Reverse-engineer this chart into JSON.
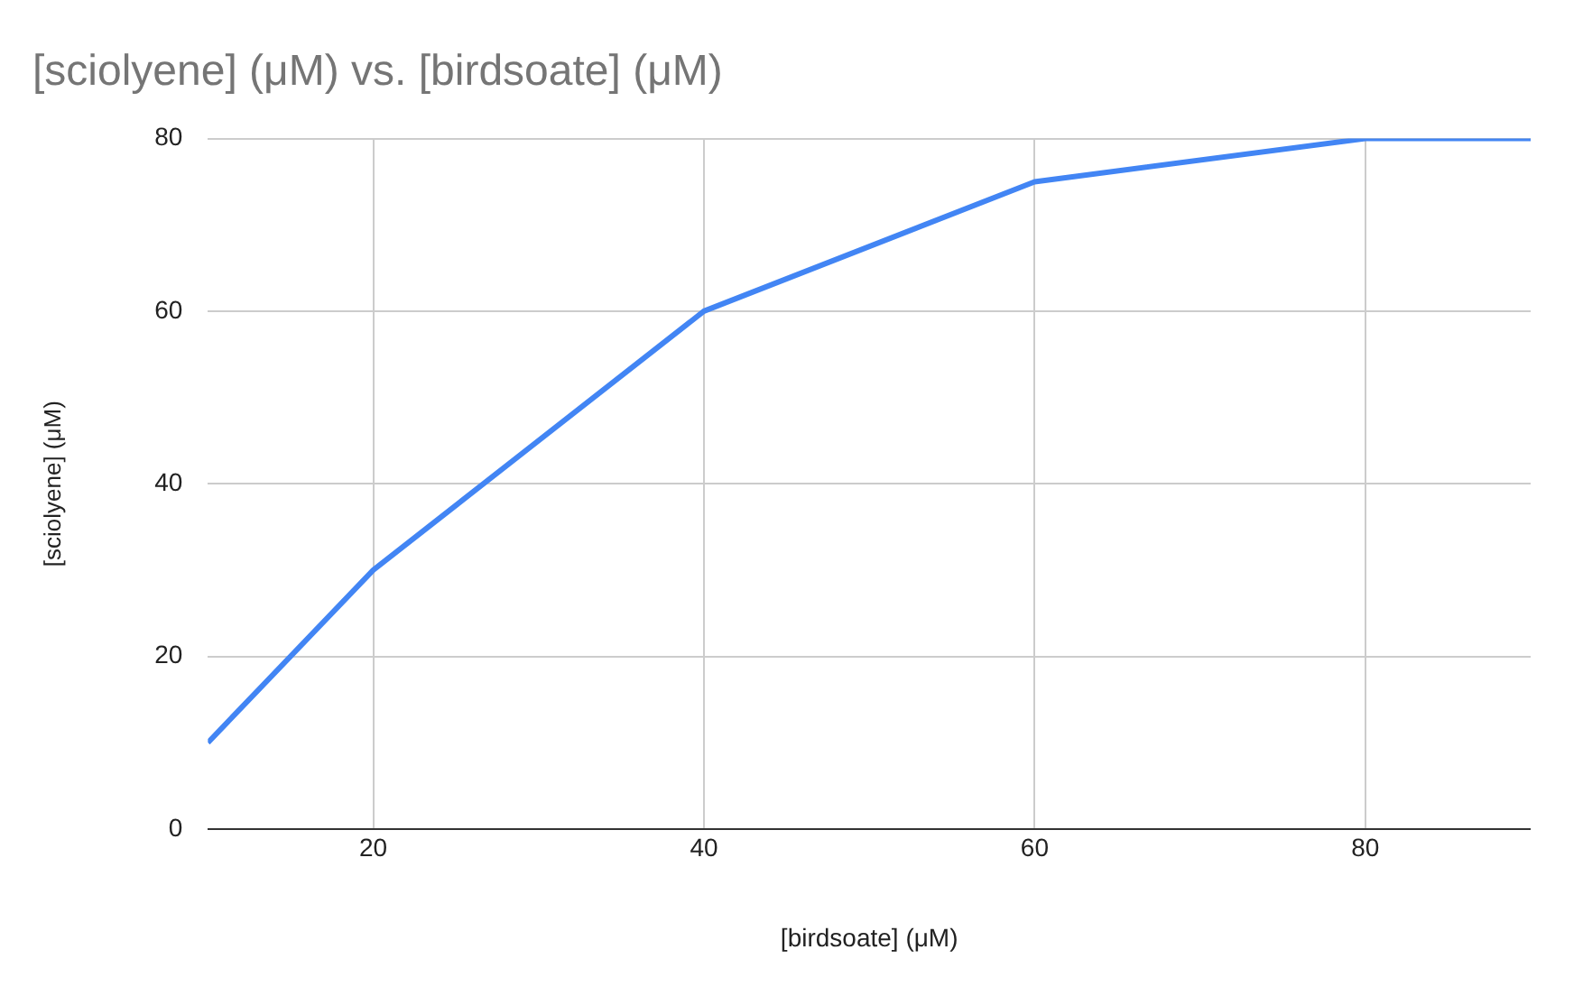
{
  "chart_data": {
    "type": "line",
    "title": "[sciolyene] (μM) vs. [birdsoate] (μM)",
    "xlabel": "[birdsoate] (μM)",
    "ylabel": "[sciolyene] (μM)",
    "x": [
      10,
      20,
      40,
      60,
      80,
      90
    ],
    "series": [
      {
        "color": "#4285f4",
        "values": [
          10,
          30,
          60,
          75,
          80,
          80
        ]
      }
    ],
    "xlim": [
      10,
      90
    ],
    "xticks": [
      20,
      40,
      60,
      80
    ],
    "ylim": [
      0,
      80
    ],
    "yticks": [
      0,
      20,
      40,
      60,
      80
    ],
    "grid": true,
    "legend": false,
    "marker": "none",
    "line_style": "solid"
  }
}
